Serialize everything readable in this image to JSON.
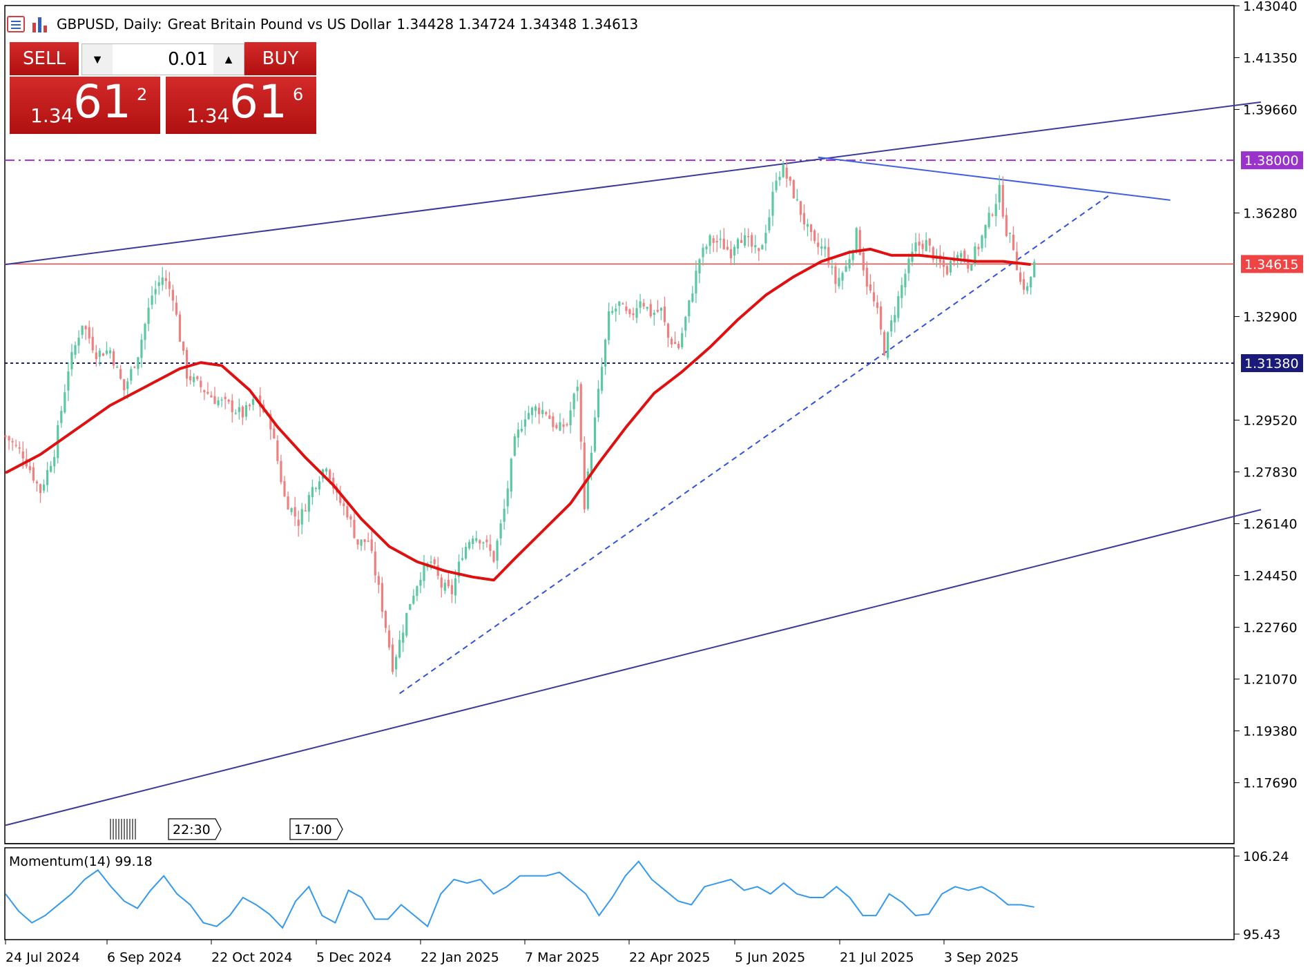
{
  "header": {
    "symbol": "GBPUSD, Daily:",
    "description": "Great Britain Pound vs US Dollar",
    "ohlc": "1.34428 1.34724 1.34348 1.34613"
  },
  "trade_panel": {
    "sell_label": "SELL",
    "buy_label": "BUY",
    "lot": "0.01",
    "sell_small": "1.34",
    "sell_big": "61",
    "sell_sup": "2",
    "buy_small": "1.34",
    "buy_big": "61",
    "buy_sup": "6",
    "down_icon": "triangle-down-icon",
    "up_icon": "triangle-up-icon"
  },
  "colors": {
    "bull_candle": "#5cc8a0",
    "bear_candle": "#f08080",
    "ma_line": "#e01010",
    "trend_line": "#3a3a9a",
    "dashed_trend": "#3050e0",
    "resistance_line": "#9933cc",
    "support_line": "#1a1a7a",
    "price_line": "#ee4444",
    "momentum": "#3399ee"
  },
  "chart_data": [
    {
      "type": "candlestick",
      "symbol": "GBPUSD",
      "timeframe": "Daily",
      "x_ticks": [
        "24 Jul 2024",
        "6 Sep 2024",
        "22 Oct 2024",
        "5 Dec 2024",
        "22 Jan 2025",
        "7 Mar 2025",
        "22 Apr 2025",
        "5 Jun 2025",
        "21 Jul 2025",
        "3 Sep 2025"
      ],
      "y_ticks": [
        "1.43040",
        "1.41350",
        "1.39660",
        "1.36280",
        "1.32900",
        "1.29520",
        "1.27830",
        "1.26140",
        "1.24450",
        "1.22760",
        "1.21070",
        "1.19380",
        "1.17690"
      ],
      "ylim": [
        1.157,
        1.4305
      ],
      "price_tags": [
        {
          "label": "1.38000",
          "value": 1.38,
          "color": "#9933cc",
          "style": "dash-dot"
        },
        {
          "label": "1.34615",
          "value": 1.34615,
          "color": "#ee4444",
          "style": "solid"
        },
        {
          "label": "1.31380",
          "value": 1.3138,
          "color": "#1a1a7a",
          "style": "dotted"
        }
      ],
      "close_path": [
        [
          0,
          1.29
        ],
        [
          5,
          1.284
        ],
        [
          10,
          1.272
        ],
        [
          14,
          1.285
        ],
        [
          18,
          1.312
        ],
        [
          22,
          1.327
        ],
        [
          26,
          1.317
        ],
        [
          30,
          1.318
        ],
        [
          34,
          1.305
        ],
        [
          38,
          1.317
        ],
        [
          42,
          1.336
        ],
        [
          45,
          1.342
        ],
        [
          48,
          1.336
        ],
        [
          50,
          1.322
        ],
        [
          52,
          1.31
        ],
        [
          56,
          1.306
        ],
        [
          60,
          1.302
        ],
        [
          64,
          1.3
        ],
        [
          68,
          1.297
        ],
        [
          72,
          1.302
        ],
        [
          76,
          1.294
        ],
        [
          80,
          1.27
        ],
        [
          84,
          1.262
        ],
        [
          88,
          1.273
        ],
        [
          92,
          1.281
        ],
        [
          95,
          1.27
        ],
        [
          98,
          1.265
        ],
        [
          101,
          1.255
        ],
        [
          104,
          1.256
        ],
        [
          107,
          1.24
        ],
        [
          109,
          1.228
        ],
        [
          111,
          1.215
        ],
        [
          113,
          1.223
        ],
        [
          116,
          1.236
        ],
        [
          119,
          1.245
        ],
        [
          122,
          1.249
        ],
        [
          125,
          1.241
        ],
        [
          128,
          1.239
        ],
        [
          131,
          1.252
        ],
        [
          134,
          1.258
        ],
        [
          137,
          1.256
        ],
        [
          140,
          1.25
        ],
        [
          143,
          1.266
        ],
        [
          146,
          1.288
        ],
        [
          149,
          1.297
        ],
        [
          152,
          1.299
        ],
        [
          155,
          1.298
        ],
        [
          158,
          1.292
        ],
        [
          161,
          1.294
        ],
        [
          164,
          1.307
        ],
        [
          166,
          1.268
        ],
        [
          168,
          1.286
        ],
        [
          170,
          1.304
        ],
        [
          173,
          1.329
        ],
        [
          176,
          1.333
        ],
        [
          179,
          1.328
        ],
        [
          182,
          1.335
        ],
        [
          185,
          1.33
        ],
        [
          188,
          1.331
        ],
        [
          190,
          1.322
        ],
        [
          193,
          1.319
        ],
        [
          196,
          1.333
        ],
        [
          199,
          1.348
        ],
        [
          202,
          1.354
        ],
        [
          205,
          1.353
        ],
        [
          208,
          1.35
        ],
        [
          210,
          1.356
        ],
        [
          213,
          1.353
        ],
        [
          216,
          1.349
        ],
        [
          219,
          1.362
        ],
        [
          221,
          1.375
        ],
        [
          223,
          1.377
        ],
        [
          226,
          1.369
        ],
        [
          229,
          1.36
        ],
        [
          232,
          1.352
        ],
        [
          235,
          1.351
        ],
        [
          238,
          1.34
        ],
        [
          241,
          1.345
        ],
        [
          244,
          1.356
        ],
        [
          247,
          1.34
        ],
        [
          250,
          1.33
        ],
        [
          252,
          1.318
        ],
        [
          255,
          1.331
        ],
        [
          258,
          1.343
        ],
        [
          261,
          1.352
        ],
        [
          264,
          1.353
        ],
        [
          267,
          1.347
        ],
        [
          270,
          1.344
        ],
        [
          273,
          1.351
        ],
        [
          276,
          1.346
        ],
        [
          279,
          1.352
        ],
        [
          281,
          1.358
        ],
        [
          283,
          1.364
        ],
        [
          285,
          1.37
        ],
        [
          287,
          1.357
        ],
        [
          289,
          1.352
        ],
        [
          291,
          1.34
        ],
        [
          293,
          1.338
        ],
        [
          295,
          1.346
        ]
      ],
      "moving_average": [
        [
          0,
          1.278
        ],
        [
          10,
          1.284
        ],
        [
          20,
          1.292
        ],
        [
          30,
          1.3
        ],
        [
          40,
          1.306
        ],
        [
          50,
          1.312
        ],
        [
          56,
          1.314
        ],
        [
          62,
          1.313
        ],
        [
          70,
          1.305
        ],
        [
          78,
          1.293
        ],
        [
          86,
          1.283
        ],
        [
          94,
          1.274
        ],
        [
          102,
          1.263
        ],
        [
          110,
          1.254
        ],
        [
          118,
          1.249
        ],
        [
          126,
          1.246
        ],
        [
          134,
          1.244
        ],
        [
          140,
          1.243
        ],
        [
          146,
          1.25
        ],
        [
          154,
          1.259
        ],
        [
          162,
          1.268
        ],
        [
          170,
          1.281
        ],
        [
          178,
          1.293
        ],
        [
          186,
          1.304
        ],
        [
          194,
          1.311
        ],
        [
          202,
          1.319
        ],
        [
          210,
          1.328
        ],
        [
          218,
          1.336
        ],
        [
          226,
          1.342
        ],
        [
          234,
          1.347
        ],
        [
          242,
          1.35
        ],
        [
          248,
          1.351
        ],
        [
          254,
          1.349
        ],
        [
          262,
          1.349
        ],
        [
          270,
          1.348
        ],
        [
          278,
          1.347
        ],
        [
          286,
          1.347
        ],
        [
          294,
          1.346
        ]
      ],
      "trend_lines": [
        {
          "name": "channel-top",
          "from": [
            0,
            1.346
          ],
          "to": [
            360,
            1.399
          ]
        },
        {
          "name": "channel-bottom",
          "from": [
            0,
            1.163
          ],
          "to": [
            360,
            1.266
          ]
        },
        {
          "name": "descending",
          "from": [
            233,
            1.381
          ],
          "to": [
            334,
            1.367
          ]
        },
        {
          "name": "ascending-dashed",
          "from": [
            113,
            1.206
          ],
          "to": [
            317,
            1.369
          ]
        }
      ]
    },
    {
      "type": "line",
      "title": "Momentum(14) 99.18",
      "series_label": "Momentum(14)",
      "last_value": "99.18",
      "y_ticks": [
        "106.24",
        "95.43"
      ],
      "ylim": [
        95.43,
        106.24
      ],
      "values": [
        101,
        98.6,
        97,
        98,
        99.5,
        101,
        103,
        104.3,
        102,
        100,
        99,
        101.5,
        103.5,
        101,
        99.5,
        97,
        96.5,
        98,
        100.5,
        99.5,
        98.2,
        96.3,
        100,
        102,
        98,
        97,
        101.5,
        100.5,
        97.5,
        97.5,
        99.5,
        98,
        96.5,
        101,
        103,
        102.5,
        103,
        101,
        102,
        103.5,
        103.5,
        103.5,
        104,
        102.5,
        101,
        98,
        100.5,
        103.5,
        105.5,
        103,
        101.5,
        100,
        99.5,
        102,
        102.5,
        103,
        101.5,
        102,
        101,
        102.5,
        101,
        100.5,
        100.5,
        102,
        100.5,
        98,
        98,
        101,
        99.8,
        98,
        98.2,
        101,
        102,
        101.5,
        102,
        101,
        99.5,
        99.5,
        99.18
      ]
    }
  ],
  "time_markers": [
    "22:30",
    "17:00"
  ]
}
